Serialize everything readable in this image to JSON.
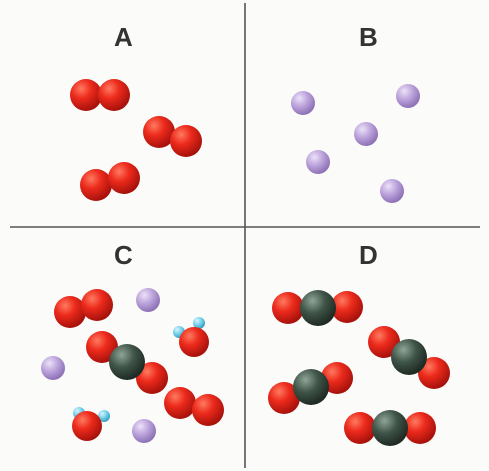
{
  "panels": [
    {
      "label": "A"
    },
    {
      "label": "B"
    },
    {
      "label": "C"
    },
    {
      "label": "D"
    }
  ],
  "colors": {
    "oxygen": "#e8221a",
    "purple_atom": "#b9a0d8",
    "dark_atom": "#3e5247",
    "hydrogen": "#6fd0ec",
    "divider": "#555555"
  }
}
